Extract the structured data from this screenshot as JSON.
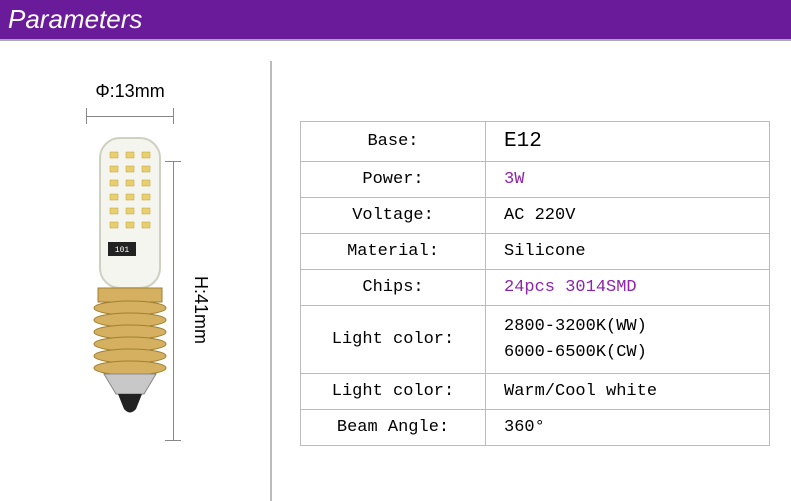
{
  "header": {
    "title": "Parameters"
  },
  "dimensions": {
    "diameter_label": "Φ:13mm",
    "height_label": "H:41mm"
  },
  "specs": {
    "rows": [
      {
        "label": "Base:",
        "value": "E12",
        "highlight": false
      },
      {
        "label": "Power:",
        "value": "3W",
        "highlight": true
      },
      {
        "label": "Voltage:",
        "value": "AC 220V",
        "highlight": false
      },
      {
        "label": "Material:",
        "value": "Silicone",
        "highlight": false
      },
      {
        "label": "Chips:",
        "value": "24pcs 3014SMD",
        "highlight": true
      },
      {
        "label": "Light color:",
        "value": "2800-3200K(WW)\n6000-6500K(CW)",
        "highlight": false
      },
      {
        "label": "Light color:",
        "value": "Warm/Cool white",
        "highlight": false
      },
      {
        "label": "Beam Angle:",
        "value": "360°",
        "highlight": false
      }
    ]
  },
  "colors": {
    "header_bg": "#6a1b9a",
    "header_text": "#ffffff",
    "border": "#bbbbbb",
    "highlight_text": "#8e24aa",
    "normal_text": "#000000",
    "background": "#ffffff"
  }
}
